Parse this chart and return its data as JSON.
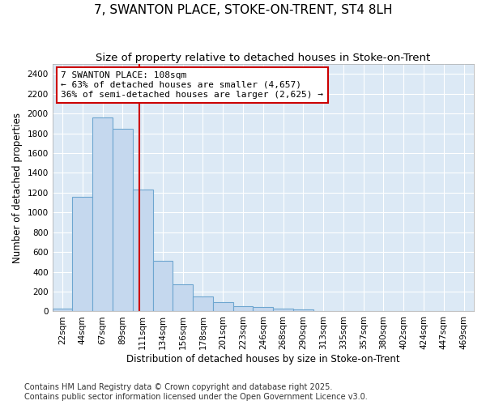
{
  "title": "7, SWANTON PLACE, STOKE-ON-TRENT, ST4 8LH",
  "subtitle": "Size of property relative to detached houses in Stoke-on-Trent",
  "xlabel": "Distribution of detached houses by size in Stoke-on-Trent",
  "ylabel": "Number of detached properties",
  "categories": [
    "22sqm",
    "44sqm",
    "67sqm",
    "89sqm",
    "111sqm",
    "134sqm",
    "156sqm",
    "178sqm",
    "201sqm",
    "223sqm",
    "246sqm",
    "268sqm",
    "290sqm",
    "313sqm",
    "335sqm",
    "357sqm",
    "380sqm",
    "402sqm",
    "424sqm",
    "447sqm",
    "469sqm"
  ],
  "values": [
    30,
    1160,
    1960,
    1850,
    1230,
    510,
    270,
    155,
    90,
    50,
    45,
    30,
    20,
    5,
    5,
    5,
    5,
    0,
    0,
    5,
    0
  ],
  "bar_color": "#c5d8ee",
  "bar_edge_color": "#6ea6d0",
  "plot_bg_color": "#dce9f5",
  "fig_bg_color": "#ffffff",
  "grid_color": "#ffffff",
  "vline_color": "#cc0000",
  "box_edge_color": "#cc0000",
  "box_face_color": "#ffffff",
  "annotation_title": "7 SWANTON PLACE: 108sqm",
  "annotation_line1": "← 63% of detached houses are smaller (4,657)",
  "annotation_line2": "36% of semi-detached houses are larger (2,625) →",
  "vline_bar_index": 3.85,
  "ylim": [
    0,
    2500
  ],
  "yticks": [
    0,
    200,
    400,
    600,
    800,
    1000,
    1200,
    1400,
    1600,
    1800,
    2000,
    2200,
    2400
  ],
  "footer_line1": "Contains HM Land Registry data © Crown copyright and database right 2025.",
  "footer_line2": "Contains public sector information licensed under the Open Government Licence v3.0.",
  "title_fontsize": 11,
  "subtitle_fontsize": 9.5,
  "axis_label_fontsize": 8.5,
  "tick_fontsize": 7.5,
  "annotation_fontsize": 8,
  "footer_fontsize": 7
}
